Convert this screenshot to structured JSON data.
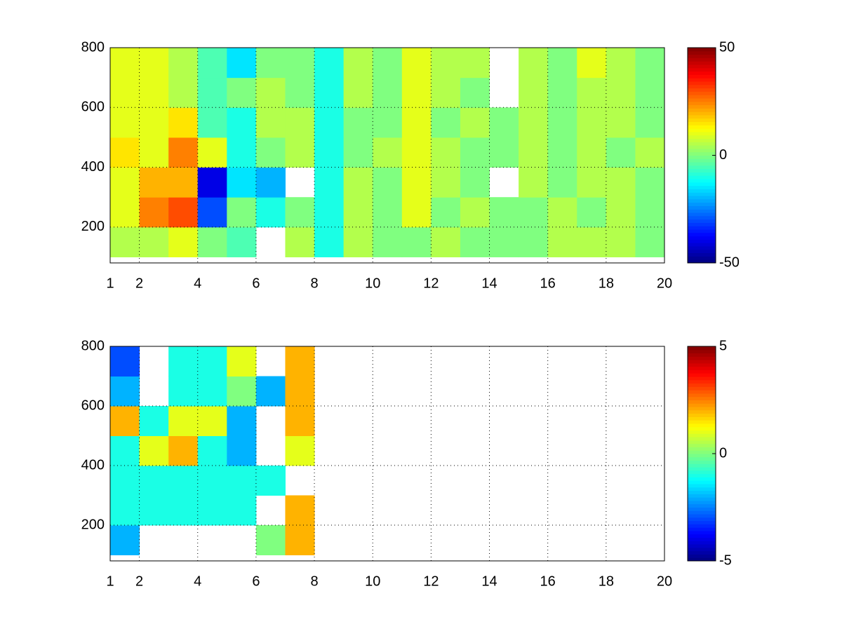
{
  "chart_data": [
    {
      "type": "heatmap",
      "x": [
        1.5,
        2.5,
        3.5,
        4.5,
        5.5,
        6.5,
        7.5,
        8.5,
        9.5,
        10.5,
        11.5,
        12.5,
        13.5,
        14.5,
        15.5,
        16.5,
        17.5,
        18.5,
        19.5
      ],
      "y": [
        150,
        250,
        350,
        450,
        550,
        650,
        750
      ],
      "values": [
        [
          5,
          5,
          10,
          0,
          -5,
          null,
          5,
          -10,
          5,
          0,
          0,
          5,
          0,
          0,
          0,
          5,
          5,
          5,
          0
        ],
        [
          10,
          25,
          30,
          -30,
          0,
          -10,
          0,
          -10,
          5,
          0,
          10,
          0,
          5,
          0,
          0,
          5,
          0,
          5,
          0
        ],
        [
          10,
          20,
          20,
          -40,
          -15,
          -20,
          null,
          -10,
          5,
          0,
          10,
          5,
          0,
          null,
          5,
          0,
          5,
          5,
          0
        ],
        [
          15,
          10,
          25,
          10,
          -10,
          0,
          5,
          -10,
          0,
          5,
          10,
          5,
          0,
          0,
          5,
          0,
          5,
          0,
          5
        ],
        [
          10,
          10,
          15,
          -5,
          -10,
          5,
          5,
          -10,
          0,
          0,
          10,
          0,
          5,
          0,
          5,
          0,
          5,
          5,
          0
        ],
        [
          10,
          10,
          5,
          -5,
          0,
          5,
          0,
          -10,
          5,
          0,
          10,
          5,
          0,
          null,
          5,
          0,
          5,
          5,
          0
        ],
        [
          10,
          10,
          5,
          -5,
          -15,
          0,
          0,
          -10,
          5,
          0,
          10,
          5,
          5,
          null,
          5,
          0,
          10,
          5,
          0
        ]
      ],
      "xlim": [
        1,
        20
      ],
      "xticks": [
        1,
        2,
        4,
        6,
        8,
        10,
        12,
        14,
        16,
        18,
        20
      ],
      "ylim": [
        80,
        800
      ],
      "yticks": [
        200,
        400,
        600,
        800
      ],
      "clim": [
        -50,
        50
      ],
      "cticks": [
        -50,
        0,
        50
      ],
      "colormap": "jet",
      "grid": true
    },
    {
      "type": "heatmap",
      "x": [
        1.5,
        2.5,
        3.5,
        4.5,
        5.5,
        6.5,
        7.5,
        8.5,
        9.5,
        10.5,
        11.5,
        12.5,
        13.5,
        14.5,
        15.5,
        16.5,
        17.5,
        18.5,
        19.5
      ],
      "y": [
        150,
        250,
        350,
        450,
        550,
        650,
        750
      ],
      "values": [
        [
          -2,
          null,
          null,
          null,
          null,
          0,
          2,
          null,
          null,
          null,
          null,
          null,
          null,
          null,
          null,
          null,
          null,
          null,
          null
        ],
        [
          -1,
          -1,
          -1,
          -1,
          -1,
          null,
          2,
          null,
          null,
          null,
          null,
          null,
          null,
          null,
          null,
          null,
          null,
          null,
          null
        ],
        [
          -1,
          -1,
          -1,
          -1,
          -1,
          -1,
          null,
          null,
          null,
          null,
          null,
          null,
          null,
          null,
          null,
          null,
          null,
          null,
          null
        ],
        [
          -1,
          1,
          2,
          -1,
          -2,
          null,
          1,
          null,
          null,
          null,
          null,
          null,
          null,
          null,
          null,
          null,
          null,
          null,
          null
        ],
        [
          2,
          -1,
          1,
          1,
          -2,
          null,
          2,
          null,
          null,
          null,
          null,
          null,
          null,
          null,
          null,
          null,
          null,
          null,
          null
        ],
        [
          -2,
          null,
          -1,
          -1,
          0,
          -2,
          2,
          null,
          null,
          null,
          null,
          null,
          null,
          null,
          null,
          null,
          null,
          null,
          null
        ],
        [
          -3,
          null,
          -1,
          -1,
          1,
          null,
          2,
          null,
          null,
          null,
          null,
          null,
          null,
          null,
          null,
          null,
          null,
          null,
          null
        ]
      ],
      "xlim": [
        1,
        20
      ],
      "xticks": [
        1,
        2,
        4,
        6,
        8,
        10,
        12,
        14,
        16,
        18,
        20
      ],
      "ylim": [
        80,
        800
      ],
      "yticks": [
        200,
        400,
        600,
        800
      ],
      "clim": [
        -5,
        5
      ],
      "cticks": [
        -5,
        0,
        5
      ],
      "colormap": "jet",
      "grid": true
    }
  ]
}
